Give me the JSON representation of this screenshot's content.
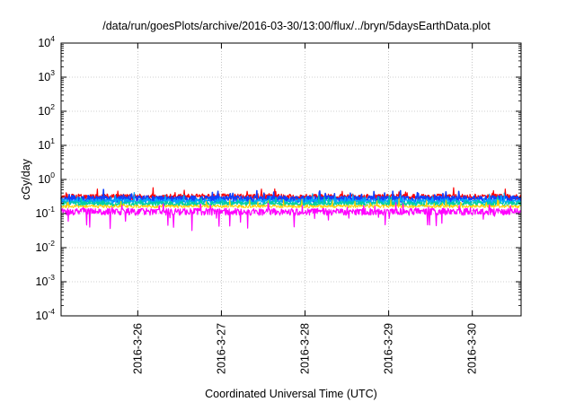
{
  "chart_data": {
    "type": "line",
    "title": "/data/run/goesPlots/archive/2016-03-30/13:00/flux/../bryn/5daysEarthData.plot",
    "xlabel": "Coordinated Universal Time (UTC)",
    "ylabel": "cGy/day",
    "y_scale": "log",
    "ylim": [
      0.0001,
      10000
    ],
    "y_ticks": [
      {
        "base": "10",
        "exp": "4",
        "value": 10000
      },
      {
        "base": "10",
        "exp": "3",
        "value": 1000
      },
      {
        "base": "10",
        "exp": "2",
        "value": 100
      },
      {
        "base": "10",
        "exp": "1",
        "value": 10
      },
      {
        "base": "10",
        "exp": "0",
        "value": 1
      },
      {
        "base": "10",
        "exp": "-1",
        "value": 0.1
      },
      {
        "base": "10",
        "exp": "-2",
        "value": 0.01
      },
      {
        "base": "10",
        "exp": "-3",
        "value": 0.001
      },
      {
        "base": "10",
        "exp": "-4",
        "value": 0.0001
      }
    ],
    "xlim": [
      "2016-03-25 02:00",
      "2016-03-30 14:00"
    ],
    "x_ticks": [
      "2016-3-26",
      "2016-3-27",
      "2016-3-28",
      "2016-3-29",
      "2016-3-30"
    ],
    "grid": true,
    "series": [
      {
        "color": "#ff0000",
        "level": 0.3,
        "noise": 0.1,
        "dips": false,
        "width": 1.2
      },
      {
        "color": "#1040ff",
        "level": 0.26,
        "noise": 0.11,
        "dips": false,
        "width": 1.6
      },
      {
        "color": "#00aaff",
        "level": 0.22,
        "noise": 0.09,
        "dips": false,
        "width": 1.2
      },
      {
        "color": "#00d0a0",
        "level": 0.19,
        "noise": 0.08,
        "dips": false,
        "width": 1.2
      },
      {
        "color": "#ffd000",
        "level": 0.16,
        "noise": 0.05,
        "dips": false,
        "width": 1.0
      },
      {
        "color": "#ff00ff",
        "level": 0.11,
        "noise": 0.12,
        "dips": true,
        "width": 1.2
      }
    ]
  }
}
